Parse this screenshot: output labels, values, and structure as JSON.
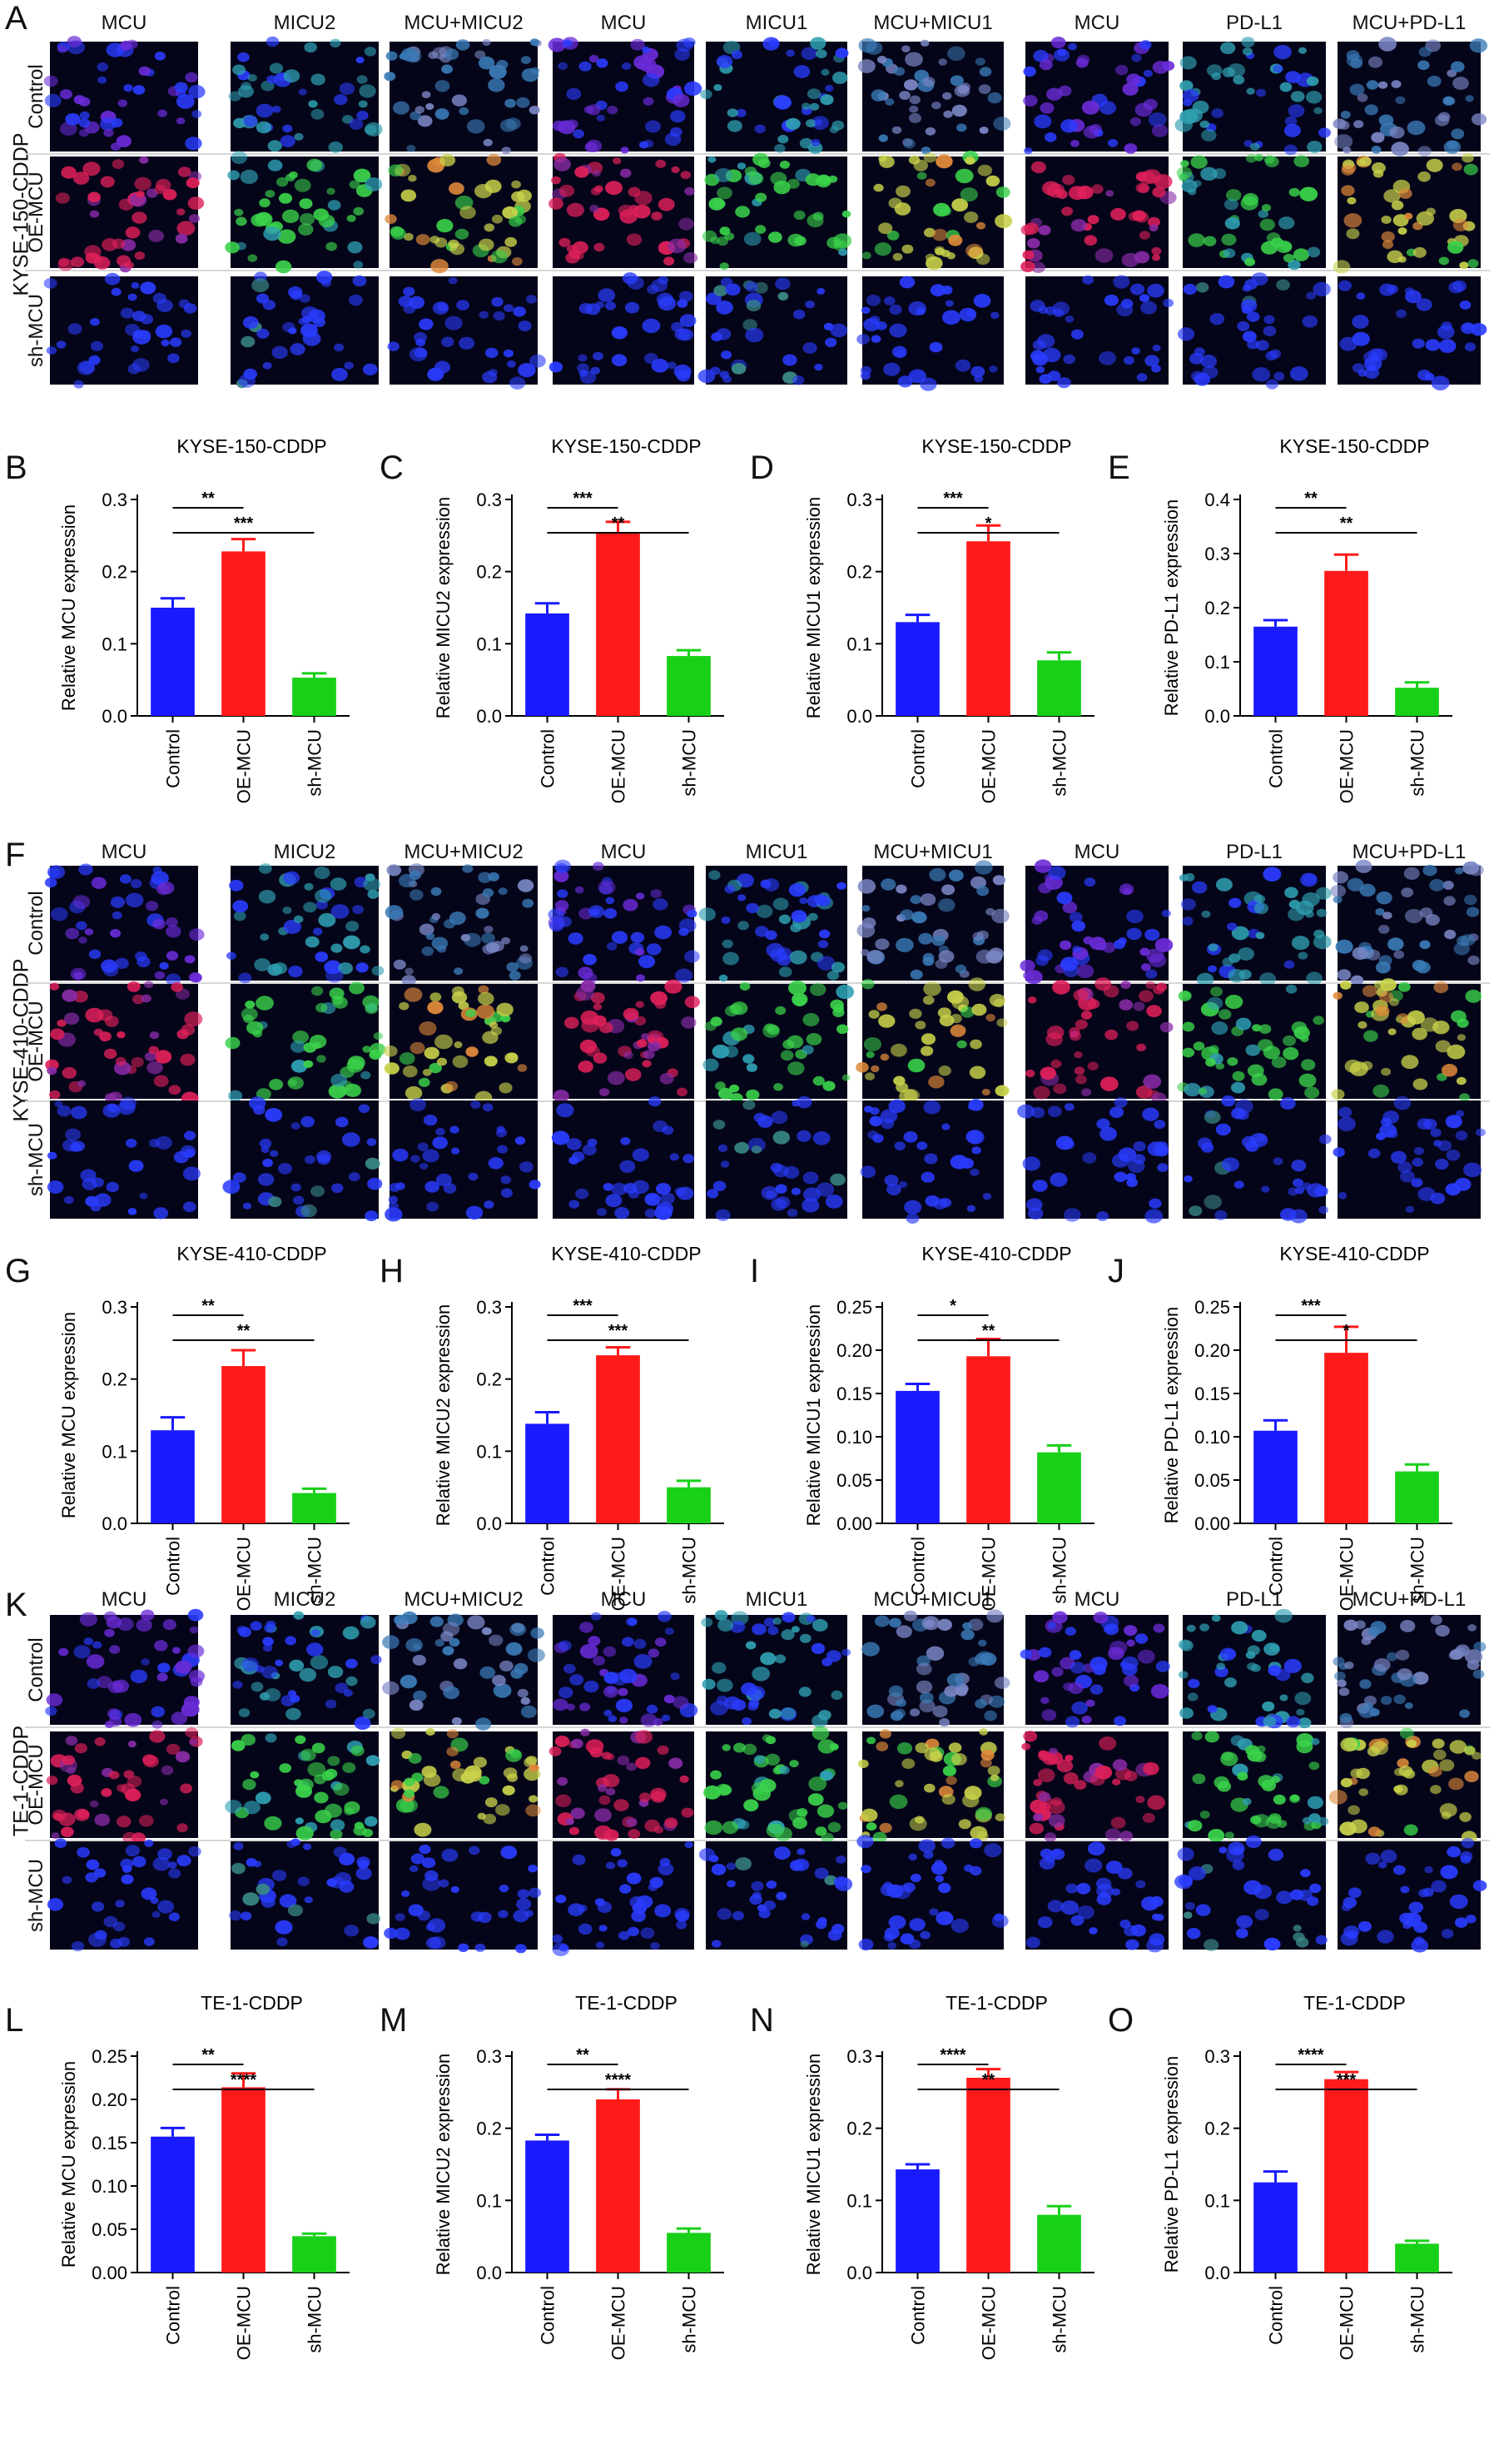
{
  "figure": {
    "panel_letters": [
      "A",
      "B",
      "C",
      "D",
      "E",
      "F",
      "G",
      "H",
      "I",
      "J",
      "K",
      "L",
      "M",
      "N",
      "O"
    ],
    "image_blocks": [
      {
        "letter": "A",
        "cell_line": "KYSE-150-CDDP",
        "groups": [
          {
            "stains": [
              "MCU",
              "MICU2",
              "MCU+MICU2"
            ]
          },
          {
            "stains": [
              "MCU",
              "MICU1",
              "MCU+MICU1"
            ]
          },
          {
            "stains": [
              "MCU",
              "PD-L1",
              "MCU+PD-L1"
            ]
          }
        ],
        "rows": [
          "Control",
          "OE-MCU",
          "sh-MCU"
        ]
      },
      {
        "letter": "F",
        "cell_line": "KYSE-410-CDDP",
        "groups": [
          {
            "stains": [
              "MCU",
              "MICU2",
              "MCU+MICU2"
            ]
          },
          {
            "stains": [
              "MCU",
              "MICU1",
              "MCU+MICU1"
            ]
          },
          {
            "stains": [
              "MCU",
              "PD-L1",
              "MCU+PD-L1"
            ]
          }
        ],
        "rows": [
          "Control",
          "OE-MCU",
          "sh-MCU"
        ]
      },
      {
        "letter": "K",
        "cell_line": "TE-1-CDDP",
        "groups": [
          {
            "stains": [
              "MCU",
              "MICU2",
              "MCU+MICU2"
            ]
          },
          {
            "stains": [
              "MCU",
              "MICU1",
              "MCU+MICU1"
            ]
          },
          {
            "stains": [
              "MCU",
              "PD-L1",
              "MCU+PD-L1"
            ]
          }
        ],
        "rows": [
          "Control",
          "OE-MCU",
          "sh-MCU"
        ]
      }
    ],
    "colors": {
      "control": "#1a1aff",
      "oe": "#ff1a1a",
      "sh": "#18d018",
      "nucleus": "#2a3cff",
      "mcu_red": "#e0205a",
      "green": "#3ad24a"
    },
    "chart_data": [
      {
        "letter": "B",
        "type": "bar",
        "title": "KYSE-150-CDDP",
        "ylabel": "Relative MCU expression",
        "categories": [
          "Control",
          "OE-MCU",
          "sh-MCU"
        ],
        "values": [
          0.15,
          0.228,
          0.053
        ],
        "errors": [
          0.013,
          0.017,
          0.006
        ],
        "ylim": [
          0,
          0.3
        ],
        "yticks": [
          "0.0",
          "0.1",
          "0.2",
          "0.3"
        ],
        "significance": [
          {
            "pair": [
              0,
              1
            ],
            "label": "**"
          },
          {
            "pair": [
              0,
              2
            ],
            "label": "***"
          }
        ]
      },
      {
        "letter": "C",
        "type": "bar",
        "title": "KYSE-150-CDDP",
        "ylabel": "Relative MICU2 expression",
        "categories": [
          "Control",
          "OE-MCU",
          "sh-MCU"
        ],
        "values": [
          0.142,
          0.255,
          0.083
        ],
        "errors": [
          0.014,
          0.014,
          0.008
        ],
        "ylim": [
          0,
          0.3
        ],
        "yticks": [
          "0.0",
          "0.1",
          "0.2",
          "0.3"
        ],
        "significance": [
          {
            "pair": [
              0,
              1
            ],
            "label": "***"
          },
          {
            "pair": [
              0,
              2
            ],
            "label": "**"
          }
        ]
      },
      {
        "letter": "D",
        "type": "bar",
        "title": "KYSE-150-CDDP",
        "ylabel": "Relative MICU1 expression",
        "categories": [
          "Control",
          "OE-MCU",
          "sh-MCU"
        ],
        "values": [
          0.13,
          0.242,
          0.077
        ],
        "errors": [
          0.01,
          0.022,
          0.011
        ],
        "ylim": [
          0,
          0.3
        ],
        "yticks": [
          "0.0",
          "0.1",
          "0.2",
          "0.3"
        ],
        "significance": [
          {
            "pair": [
              0,
              1
            ],
            "label": "***"
          },
          {
            "pair": [
              0,
              2
            ],
            "label": "*"
          }
        ]
      },
      {
        "letter": "E",
        "type": "bar",
        "title": "KYSE-150-CDDP",
        "ylabel": "Relative PD-L1 expression",
        "categories": [
          "Control",
          "OE-MCU",
          "sh-MCU"
        ],
        "values": [
          0.165,
          0.268,
          0.052
        ],
        "errors": [
          0.012,
          0.03,
          0.01
        ],
        "ylim": [
          0,
          0.4
        ],
        "yticks": [
          "0.0",
          "0.1",
          "0.2",
          "0.3",
          "0.4"
        ],
        "significance": [
          {
            "pair": [
              0,
              1
            ],
            "label": "**"
          },
          {
            "pair": [
              0,
              2
            ],
            "label": "**"
          }
        ]
      },
      {
        "letter": "G",
        "type": "bar",
        "title": "KYSE-410-CDDP",
        "ylabel": "Relative MCU expression",
        "categories": [
          "Control",
          "OE-MCU",
          "sh-MCU"
        ],
        "values": [
          0.129,
          0.218,
          0.042
        ],
        "errors": [
          0.018,
          0.022,
          0.006
        ],
        "ylim": [
          0,
          0.3
        ],
        "yticks": [
          "0.0",
          "0.1",
          "0.2",
          "0.3"
        ],
        "significance": [
          {
            "pair": [
              0,
              1
            ],
            "label": "**"
          },
          {
            "pair": [
              0,
              2
            ],
            "label": "**"
          }
        ]
      },
      {
        "letter": "H",
        "type": "bar",
        "title": "KYSE-410-CDDP",
        "ylabel": "Relative MICU2 expression",
        "categories": [
          "Control",
          "OE-MCU",
          "sh-MCU"
        ],
        "values": [
          0.138,
          0.233,
          0.05
        ],
        "errors": [
          0.016,
          0.011,
          0.009
        ],
        "ylim": [
          0,
          0.3
        ],
        "yticks": [
          "0.0",
          "0.1",
          "0.2",
          "0.3"
        ],
        "significance": [
          {
            "pair": [
              0,
              1
            ],
            "label": "***"
          },
          {
            "pair": [
              0,
              2
            ],
            "label": "***"
          }
        ]
      },
      {
        "letter": "I",
        "type": "bar",
        "title": "KYSE-410-CDDP",
        "ylabel": "Relative MICU1 expression",
        "categories": [
          "Control",
          "OE-MCU",
          "sh-MCU"
        ],
        "values": [
          0.153,
          0.193,
          0.082
        ],
        "errors": [
          0.008,
          0.02,
          0.008
        ],
        "ylim": [
          0,
          0.25
        ],
        "yticks": [
          "0.00",
          "0.05",
          "0.10",
          "0.15",
          "0.20",
          "0.25"
        ],
        "significance": [
          {
            "pair": [
              0,
              1
            ],
            "label": "*"
          },
          {
            "pair": [
              0,
              2
            ],
            "label": "**"
          }
        ]
      },
      {
        "letter": "J",
        "type": "bar",
        "title": "KYSE-410-CDDP",
        "ylabel": "Relative PD-L1 expression",
        "categories": [
          "Control",
          "OE-MCU",
          "sh-MCU"
        ],
        "values": [
          0.107,
          0.197,
          0.06
        ],
        "errors": [
          0.012,
          0.03,
          0.008
        ],
        "ylim": [
          0,
          0.25
        ],
        "yticks": [
          "0.00",
          "0.05",
          "0.10",
          "0.15",
          "0.20",
          "0.25"
        ],
        "significance": [
          {
            "pair": [
              0,
              1
            ],
            "label": "***"
          },
          {
            "pair": [
              0,
              2
            ],
            "label": "*"
          }
        ]
      },
      {
        "letter": "L",
        "type": "bar",
        "title": "TE-1-CDDP",
        "ylabel": "Relative MCU expression",
        "categories": [
          "Control",
          "OE-MCU",
          "sh-MCU"
        ],
        "values": [
          0.157,
          0.214,
          0.042
        ],
        "errors": [
          0.01,
          0.016,
          0.003
        ],
        "ylim": [
          0,
          0.25
        ],
        "yticks": [
          "0.00",
          "0.05",
          "0.10",
          "0.15",
          "0.20",
          "0.25"
        ],
        "significance": [
          {
            "pair": [
              0,
              1
            ],
            "label": "**"
          },
          {
            "pair": [
              0,
              2
            ],
            "label": "****"
          }
        ]
      },
      {
        "letter": "M",
        "type": "bar",
        "title": "TE-1-CDDP",
        "ylabel": "Relative MICU2 expression",
        "categories": [
          "Control",
          "OE-MCU",
          "sh-MCU"
        ],
        "values": [
          0.183,
          0.24,
          0.055
        ],
        "errors": [
          0.008,
          0.014,
          0.006
        ],
        "ylim": [
          0,
          0.3
        ],
        "yticks": [
          "0.0",
          "0.1",
          "0.2",
          "0.3"
        ],
        "significance": [
          {
            "pair": [
              0,
              1
            ],
            "label": "**"
          },
          {
            "pair": [
              0,
              2
            ],
            "label": "****"
          }
        ]
      },
      {
        "letter": "N",
        "type": "bar",
        "title": "TE-1-CDDP",
        "ylabel": "Relative MICU1 expression",
        "categories": [
          "Control",
          "OE-MCU",
          "sh-MCU"
        ],
        "values": [
          0.143,
          0.27,
          0.08
        ],
        "errors": [
          0.007,
          0.012,
          0.012
        ],
        "ylim": [
          0,
          0.3
        ],
        "yticks": [
          "0.0",
          "0.1",
          "0.2",
          "0.3"
        ],
        "significance": [
          {
            "pair": [
              0,
              1
            ],
            "label": "****"
          },
          {
            "pair": [
              0,
              2
            ],
            "label": "**"
          }
        ]
      },
      {
        "letter": "O",
        "type": "bar",
        "title": "TE-1-CDDP",
        "ylabel": "Relative PD-L1 expression",
        "categories": [
          "Control",
          "OE-MCU",
          "sh-MCU"
        ],
        "values": [
          0.125,
          0.268,
          0.04
        ],
        "errors": [
          0.015,
          0.01,
          0.004
        ],
        "ylim": [
          0,
          0.3
        ],
        "yticks": [
          "0.0",
          "0.1",
          "0.2",
          "0.3"
        ],
        "significance": [
          {
            "pair": [
              0,
              1
            ],
            "label": "****"
          },
          {
            "pair": [
              0,
              2
            ],
            "label": "***"
          }
        ]
      }
    ]
  }
}
